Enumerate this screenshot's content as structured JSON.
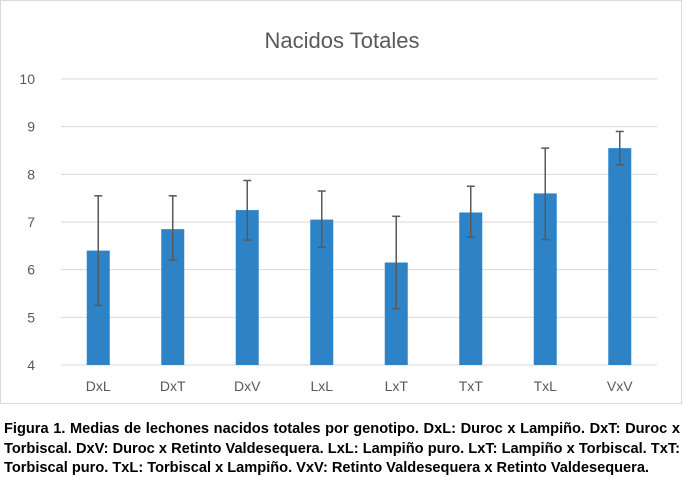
{
  "chart_data": {
    "type": "bar",
    "title": "Nacidos Totales",
    "xlabel": "",
    "ylabel": "",
    "categories": [
      "DxL",
      "DxT",
      "DxV",
      "LxL",
      "LxT",
      "TxT",
      "TxL",
      "VxV"
    ],
    "values": [
      6.4,
      6.85,
      7.25,
      7.05,
      6.15,
      7.2,
      7.6,
      8.55
    ],
    "error_high": [
      7.55,
      7.55,
      7.87,
      7.65,
      7.12,
      7.75,
      8.55,
      8.9
    ],
    "error_low": [
      5.25,
      6.2,
      6.62,
      6.47,
      5.18,
      6.68,
      6.63,
      8.2
    ],
    "ylim": [
      4,
      10
    ],
    "yticks": [
      4,
      5,
      6,
      7,
      8,
      9,
      10
    ],
    "grid": true,
    "legend": "none",
    "bar_color": "#2e83c6",
    "error_color": "#595959",
    "grid_color": "#d9d9d9"
  },
  "caption": "Figura 1.  Medias de lechones nacidos totales por genotipo. DxL: Duroc x Lampiño. DxT: Duroc x Torbiscal. DxV: Duroc x Retinto Valdesequera. LxL: Lampiño puro. LxT: Lampiño x Torbiscal. TxT: Torbiscal puro. TxL: Torbiscal x Lampiño. VxV: Retinto Valdesequera x Retinto Valdesequera."
}
